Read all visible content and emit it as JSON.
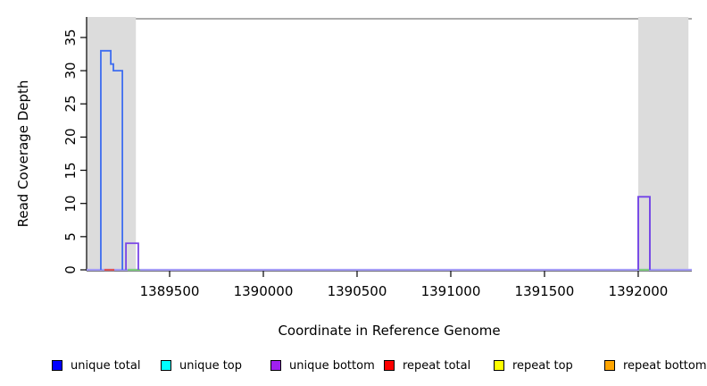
{
  "chart_data": {
    "type": "line",
    "subtype": "step-coverage",
    "title": "",
    "xlabel": "Coordinate in Reference Genome",
    "ylabel": "Read Coverage Depth",
    "xlim": [
      1389057,
      1392286
    ],
    "ylim": [
      0,
      38
    ],
    "x_ticks": [
      1389500,
      1390000,
      1390500,
      1391000,
      1391500,
      1392000
    ],
    "y_ticks": [
      0,
      5,
      10,
      15,
      20,
      25,
      30,
      35
    ],
    "grid": false,
    "legend_position": "bottom",
    "band_color": "#dcdcdc",
    "frame_top_color": "#8f8f8f",
    "axis_color": "#000000",
    "baseline_color": "#a49cf5",
    "shaded_regions": [
      {
        "from": 1389057,
        "to": 1389320
      },
      {
        "from": 1392000,
        "to": 1392268
      }
    ],
    "series": [
      {
        "name": "unique total",
        "legend_color": "#0000ff",
        "line_color": "#3e6df0",
        "steps": [
          {
            "from": 1389133,
            "to": 1389186,
            "depth": 33
          },
          {
            "from": 1389186,
            "to": 1389200,
            "depth": 31
          },
          {
            "from": 1389200,
            "to": 1389248,
            "depth": 30
          },
          {
            "from": 1392000,
            "to": 1392062,
            "depth": 11
          }
        ]
      },
      {
        "name": "unique top",
        "legend_color": "#00ffff",
        "line_color": "#00ffff",
        "steps": []
      },
      {
        "name": "unique bottom",
        "legend_color": "#a020f0",
        "line_color": "#7a45e6",
        "steps": [
          {
            "from": 1389267,
            "to": 1389333,
            "depth": 4
          },
          {
            "from": 1392000,
            "to": 1392062,
            "depth": 11
          }
        ]
      },
      {
        "name": "repeat total",
        "legend_color": "#ff0000",
        "line_color": "#e05555",
        "steps": []
      },
      {
        "name": "repeat top",
        "legend_color": "#ffff00",
        "line_color": "#ffff00",
        "steps": []
      },
      {
        "name": "repeat bottom",
        "legend_color": "#ffa500",
        "line_color": "#ffa500",
        "steps": []
      }
    ],
    "zero_marks": [
      {
        "color": "#e05555",
        "from": 1389152,
        "to": 1389205
      },
      {
        "color": "#7fcf7f",
        "from": 1389276,
        "to": 1389343
      },
      {
        "color": "#7fcf7f",
        "from": 1392005,
        "to": 1392057
      }
    ]
  },
  "legend": {
    "items": [
      {
        "label": "unique total",
        "color": "#0000ff"
      },
      {
        "label": "unique top",
        "color": "#00ffff"
      },
      {
        "label": "unique bottom",
        "color": "#a020f0"
      },
      {
        "label": "repeat total",
        "color": "#ff0000"
      },
      {
        "label": "repeat top",
        "color": "#ffff00"
      },
      {
        "label": "repeat bottom",
        "color": "#ffa500"
      }
    ]
  }
}
